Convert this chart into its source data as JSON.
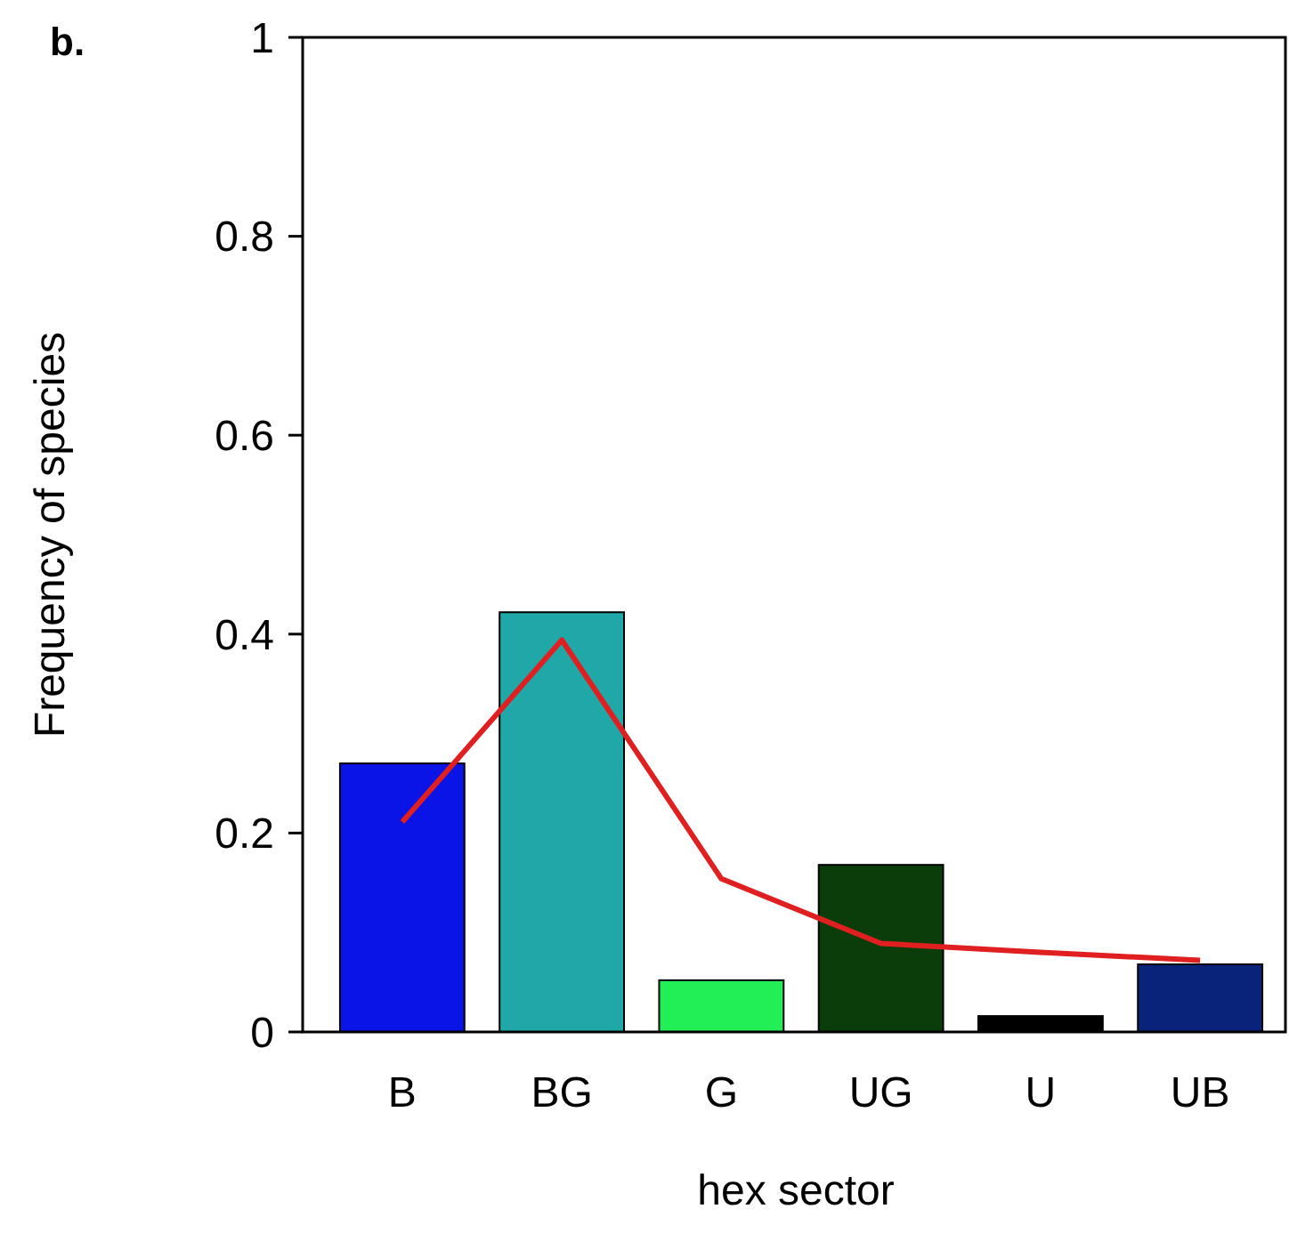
{
  "chart_data": {
    "type": "bar",
    "ylabel": "Frequency of species",
    "xlabel": "hex sector",
    "annotations": [
      "b."
    ],
    "categories": [
      "B",
      "BG",
      "G",
      "UG",
      "U",
      "UB"
    ],
    "ylim": [
      0,
      1
    ],
    "yticks": [
      0,
      0.2,
      0.4,
      0.6,
      0.8,
      1
    ],
    "grid": false,
    "series": [
      {
        "colors": [
          "#0a14e6",
          "#20a8a8",
          "#22ee55",
          "#0a3d0a",
          "#000000",
          "#0a237a"
        ],
        "values": [
          0.27,
          0.422,
          0.052,
          0.168,
          0.016,
          0.068
        ]
      },
      {
        "type": "line",
        "color": "#e02020",
        "values": [
          0.211,
          0.394,
          0.154,
          0.089,
          0.08,
          0.072
        ]
      }
    ]
  }
}
